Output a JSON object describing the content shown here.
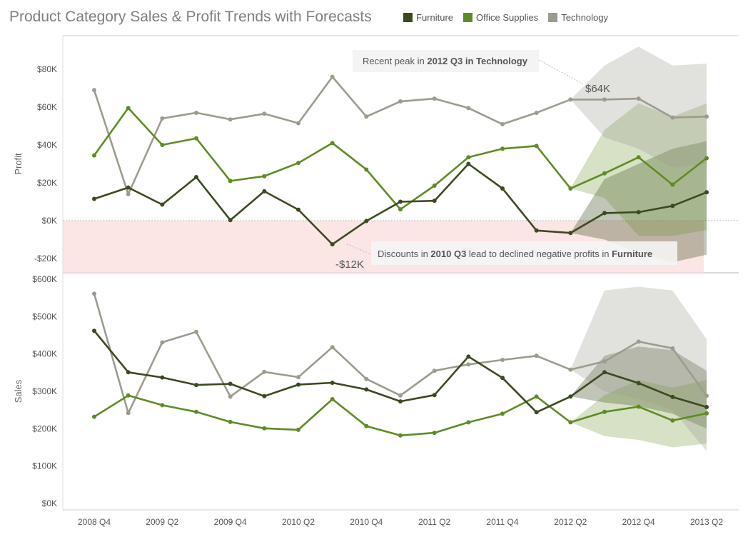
{
  "title": "Product Category Sales & Profit Trends with Forecasts",
  "legend": [
    {
      "name": "Furniture",
      "color": "#3b4a1f"
    },
    {
      "name": "Office Supplies",
      "color": "#5f8b24"
    },
    {
      "name": "Technology",
      "color": "#9c9c8e"
    }
  ],
  "chart_data": {
    "type": "line",
    "x": [
      "2008 Q4",
      "2009 Q1",
      "2009 Q2",
      "2009 Q3",
      "2009 Q4",
      "2010 Q1",
      "2010 Q2",
      "2010 Q3",
      "2010 Q4",
      "2011 Q1",
      "2011 Q2",
      "2011 Q3",
      "2011 Q4",
      "2012 Q1",
      "2012 Q2",
      "2012 Q3",
      "2012 Q4",
      "2013 Q1",
      "2013 Q2"
    ],
    "x_tick_labels": [
      "2008 Q4",
      "2009 Q2",
      "2009 Q4",
      "2010 Q2",
      "2010 Q4",
      "2011 Q2",
      "2011 Q4",
      "2012 Q2",
      "2012 Q4",
      "2013 Q2"
    ],
    "forecast_start_index": 15,
    "panels": [
      {
        "ylabel": "Profit",
        "ylim": [
          -27000,
          91000
        ],
        "y_ticks": [
          -20000,
          0,
          20000,
          40000,
          60000,
          80000
        ],
        "y_tick_labels": [
          "-$20K",
          "$0K",
          "$20K",
          "$40K",
          "$60K",
          "$80K"
        ],
        "negative_band": true,
        "series": [
          {
            "name": "Furniture",
            "values": [
              11500,
              17500,
              8500,
              23000,
              300,
              15500,
              5800,
              -12500,
              -200,
              10000,
              10500,
              30000,
              17000,
              -5200,
              -6500,
              4000,
              4500,
              7800,
              15000
            ],
            "band": [
              [
                -6500,
                -6500
              ],
              [
                -10000,
                22000
              ],
              [
                -17000,
                30000
              ],
              [
                -22000,
                38000
              ],
              [
                -18000,
                42000
              ]
            ]
          },
          {
            "name": "Office Supplies",
            "values": [
              34500,
              59500,
              40000,
              43500,
              21000,
              23500,
              30500,
              41000,
              27000,
              6000,
              18500,
              33500,
              38000,
              39500,
              17000,
              25000,
              33500,
              19000,
              33000
            ],
            "band": [
              [
                17000,
                17000
              ],
              [
                12000,
                48000
              ],
              [
                -8000,
                62000
              ],
              [
                -8000,
                55000
              ],
              [
                -5000,
                62000
              ]
            ]
          },
          {
            "name": "Technology",
            "values": [
              69000,
              14000,
              54000,
              57000,
              53500,
              56500,
              51500,
              76000,
              55000,
              63000,
              64500,
              59500,
              51000,
              57000,
              64000,
              64000,
              64500,
              54500,
              55000
            ],
            "band": [
              [
                64000,
                64000
              ],
              [
                44000,
                82000
              ],
              [
                38000,
                92000
              ],
              [
                28000,
                82000
              ],
              [
                30000,
                83000
              ]
            ]
          }
        ],
        "annotations": [
          {
            "callout": "Recent peak in",
            "bold": "2012 Q3 in Technology",
            "value_label": "$64K"
          },
          {
            "callout": "Discounts  in",
            "bold1": "2010 Q3",
            "middle": "lead to declined negative profits in",
            "bold2": "Furniture",
            "value_label": "-$12K"
          }
        ]
      },
      {
        "ylabel": "Sales",
        "ylim": [
          0,
          600000
        ],
        "y_ticks": [
          0,
          100000,
          200000,
          300000,
          400000,
          500000,
          600000
        ],
        "y_tick_labels": [
          "$0K",
          "$100K",
          "$200K",
          "$300K",
          "$400K",
          "$500K",
          "$600K"
        ],
        "series": [
          {
            "name": "Furniture",
            "values": [
              462000,
              351000,
              337000,
              317000,
              320000,
              287000,
              318000,
              323000,
              305000,
              273000,
              290000,
              393000,
              336000,
              244000,
              286000,
              351000,
              322000,
              285000,
              258000
            ],
            "band": [
              [
                286000,
                286000
              ],
              [
                270000,
                395000
              ],
              [
                260000,
                420000
              ],
              [
                240000,
                410000
              ],
              [
                200000,
                355000
              ]
            ]
          },
          {
            "name": "Office Supplies",
            "values": [
              232000,
              289000,
              263000,
              245000,
              218000,
              201000,
              197000,
              279000,
              207000,
              182000,
              189000,
              217000,
              240000,
              286000,
              217000,
              245000,
              259000,
              222000,
              241000
            ],
            "band": [
              [
                217000,
                217000
              ],
              [
                180000,
                290000
              ],
              [
                170000,
                330000
              ],
              [
                150000,
                310000
              ],
              [
                160000,
                330000
              ]
            ]
          },
          {
            "name": "Technology",
            "values": [
              561000,
              242000,
              431000,
              459000,
              286000,
              352000,
              338000,
              418000,
              333000,
              289000,
              355000,
              372000,
              384000,
              395000,
              358000,
              380000,
              433000,
              415000,
              288000
            ],
            "band": [
              [
                358000,
                358000
              ],
              [
                300000,
                570000
              ],
              [
                280000,
                580000
              ],
              [
                250000,
                570000
              ],
              [
                140000,
                440000
              ]
            ]
          }
        ]
      }
    ]
  }
}
